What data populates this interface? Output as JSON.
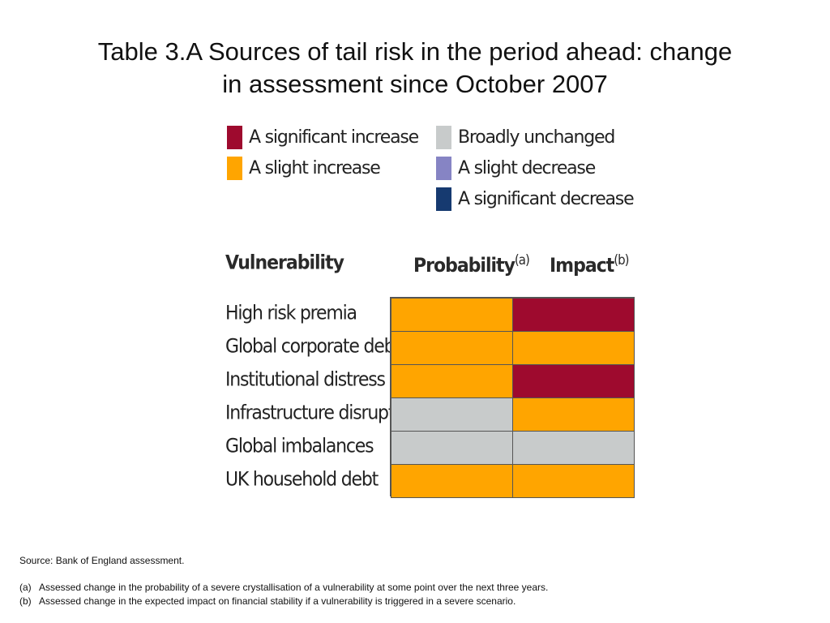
{
  "title": {
    "line1": "Table 3.A  Sources of tail risk in the period ahead:  change",
    "line2": "in assessment since October 2007"
  },
  "legend": {
    "items": [
      {
        "key": "significant_increase",
        "label": "A significant increase",
        "color": "#9e0a2e"
      },
      {
        "key": "slight_increase",
        "label": "A slight increase",
        "color": "#ffa500"
      },
      {
        "key": "broadly_unchanged",
        "label": "Broadly unchanged",
        "color": "#c8cbcb"
      },
      {
        "key": "slight_decrease",
        "label": "A slight decrease",
        "color": "#8684c4"
      },
      {
        "key": "significant_decrease",
        "label": "A significant decrease",
        "color": "#163a70"
      }
    ]
  },
  "table": {
    "headers": {
      "vulnerability": "Vulnerability",
      "probability": "Probability",
      "probability_note": "(a)",
      "impact": "Impact",
      "impact_note": "(b)"
    },
    "rows": [
      {
        "label": "High risk premia",
        "probability": "slight_increase",
        "impact": "significant_increase"
      },
      {
        "label": "Global corporate debt",
        "probability": "slight_increase",
        "impact": "slight_increase"
      },
      {
        "label": "Institutional distress",
        "probability": "slight_increase",
        "impact": "significant_increase"
      },
      {
        "label": "Infrastructure disruption",
        "probability": "broadly_unchanged",
        "impact": "slight_increase"
      },
      {
        "label": "Global imbalances",
        "probability": "broadly_unchanged",
        "impact": "broadly_unchanged"
      },
      {
        "label": "UK household debt",
        "probability": "slight_increase",
        "impact": "slight_increase"
      }
    ]
  },
  "source": "Source:  Bank of England assessment.",
  "notes": [
    {
      "mark": "(a)",
      "text": "Assessed change in the probability of a severe crystallisation of a vulnerability at some point over the next three years."
    },
    {
      "mark": "(b)",
      "text": "Assessed change in the expected impact on financial stability if a vulnerability is triggered in a severe scenario."
    }
  ]
}
